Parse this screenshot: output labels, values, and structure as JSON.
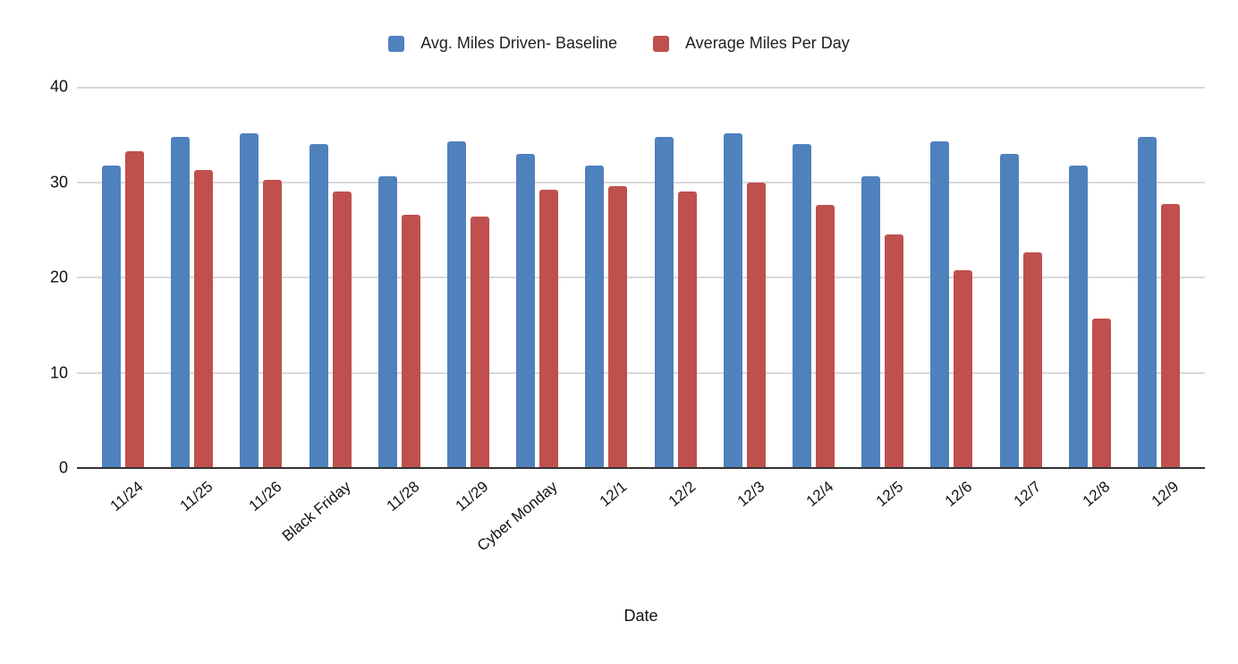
{
  "chart_data": {
    "type": "bar",
    "title": "",
    "xlabel": "Date",
    "ylabel": "",
    "ylim": [
      0,
      40
    ],
    "yticks": [
      0,
      10,
      20,
      30,
      40
    ],
    "grid": "horizontal",
    "legend_position": "top",
    "categories": [
      "11/24",
      "11/25",
      "11/26",
      "Black Friday",
      "11/28",
      "11/29",
      "Cyber Monday",
      "12/1",
      "12/2",
      "12/3",
      "12/4",
      "12/5",
      "12/6",
      "12/7",
      "12/8",
      "12/9"
    ],
    "series": [
      {
        "name": "Avg. Miles Driven- Baseline",
        "color": "#4F81BD",
        "values": [
          31.7,
          34.7,
          35.1,
          34.0,
          30.6,
          34.3,
          33.0,
          31.7,
          34.7,
          35.1,
          34.0,
          30.6,
          34.3,
          33.0,
          31.7,
          34.7
        ]
      },
      {
        "name": "Average Miles Per Day",
        "color": "#C0504D",
        "values": [
          33.2,
          31.3,
          30.2,
          29.0,
          26.6,
          26.4,
          29.2,
          29.6,
          29.0,
          30.0,
          27.6,
          24.5,
          20.8,
          22.6,
          15.7,
          27.7
        ]
      }
    ]
  },
  "colors": {
    "gridline": "#D9D9D9",
    "axis_line": "#333333",
    "text": "#111111"
  }
}
